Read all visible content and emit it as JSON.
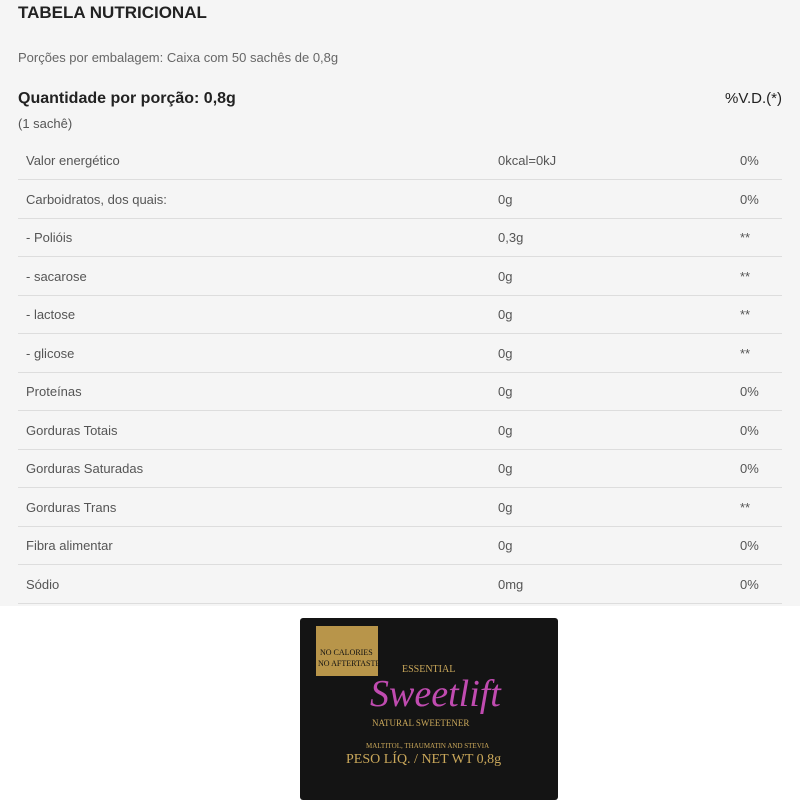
{
  "header": {
    "title": "TABELA NUTRICIONAL",
    "servings": "Porções por embalagem: Caixa com 50 sachês de 0,8g"
  },
  "table": {
    "portion": "Quantidade por porção: 0,8g",
    "portion_note": "(1 sachê)",
    "vd_header": "%V.D.(*)",
    "rows": [
      [
        "Valor energético",
        "0kcal=0kJ",
        "0%"
      ],
      [
        "Carboidratos, dos quais:",
        "0g",
        "0%"
      ],
      [
        "- Polióis",
        "0,3g",
        "**"
      ],
      [
        "- sacarose",
        "0g",
        "**"
      ],
      [
        "- lactose",
        "0g",
        "**"
      ],
      [
        "- glicose",
        "0g",
        "**"
      ],
      [
        "Proteínas",
        "0g",
        "0%"
      ],
      [
        "Gorduras Totais",
        "0g",
        "0%"
      ],
      [
        "Gorduras Saturadas",
        "0g",
        "0%"
      ],
      [
        "Gorduras Trans",
        "0g",
        "**"
      ],
      [
        "Fibra alimentar",
        "0g",
        "0%"
      ],
      [
        "Sódio",
        "0mg",
        "0%"
      ]
    ]
  },
  "product": {
    "badge_1": "NO CALORIES",
    "badge_2": "NO AFTERTASTE",
    "brand": "ESSENTIAL",
    "name": "Sweetlift",
    "tagline": "NATURAL SWEETENER",
    "ingredients": "MALTITOL, THAUMATIN AND STEVIA",
    "weight": "PESO LÍQ. / NET WT 0,8g"
  }
}
